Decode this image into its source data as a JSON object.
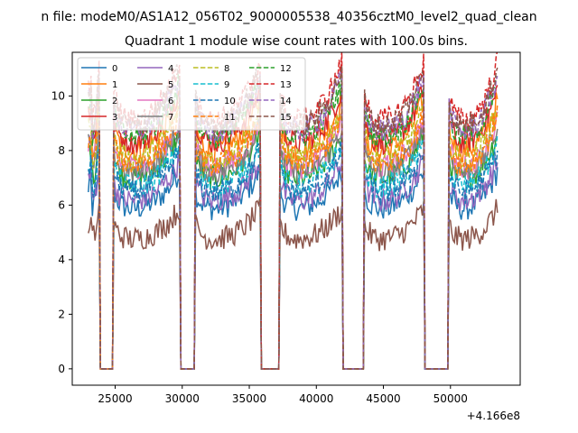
{
  "chart_data": {
    "type": "line",
    "suptitle": "n file: modeM0/AS1A12_056T02_9000005538_40356cztM0_level2_quad_clean",
    "title": "Quadrant 1 module wise count rates with 100.0s bins.",
    "xlabel": "",
    "ylabel": "",
    "x_offset_label": "+4.166e8",
    "xlim": [
      21800,
      55200
    ],
    "ylim": [
      -0.6,
      11.6
    ],
    "x_ticks": [
      25000,
      30000,
      35000,
      40000,
      45000,
      50000
    ],
    "x_tick_labels": [
      "25000",
      "30000",
      "35000",
      "40000",
      "45000",
      "50000"
    ],
    "y_ticks": [
      0,
      2,
      4,
      6,
      8,
      10
    ],
    "y_tick_labels": [
      "0",
      "2",
      "4",
      "6",
      "8",
      "10"
    ],
    "grid": false,
    "legend_position": "top-left",
    "orbit_segments": [
      [
        23000,
        23800
      ],
      [
        24900,
        29800
      ],
      [
        31000,
        35800
      ],
      [
        37300,
        41900
      ],
      [
        43600,
        48000
      ],
      [
        49900,
        53500
      ]
    ],
    "gaps": [
      [
        23800,
        24900
      ],
      [
        29800,
        31000
      ],
      [
        35800,
        37300
      ],
      [
        41900,
        43600
      ],
      [
        48000,
        49900
      ]
    ],
    "bin_seconds": 100.0,
    "series": [
      {
        "name": "0",
        "color": "#1f77b4",
        "dash": "solid",
        "base_rate": 5.8
      },
      {
        "name": "1",
        "color": "#ff7f0e",
        "dash": "solid",
        "base_rate": 7.9
      },
      {
        "name": "2",
        "color": "#2ca02c",
        "dash": "solid",
        "base_rate": 6.9
      },
      {
        "name": "3",
        "color": "#d62728",
        "dash": "solid",
        "base_rate": 8.2
      },
      {
        "name": "4",
        "color": "#9467bd",
        "dash": "solid",
        "base_rate": 6.1
      },
      {
        "name": "5",
        "color": "#8c564b",
        "dash": "solid",
        "base_rate": 4.7
      },
      {
        "name": "6",
        "color": "#e377c2",
        "dash": "solid",
        "base_rate": 7.3
      },
      {
        "name": "7",
        "color": "#7f7f7f",
        "dash": "solid",
        "base_rate": 7.1
      },
      {
        "name": "8",
        "color": "#bcbd22",
        "dash": "dashed",
        "base_rate": 7.6
      },
      {
        "name": "9",
        "color": "#17becf",
        "dash": "dashed",
        "base_rate": 6.6
      },
      {
        "name": "10",
        "color": "#1f77b4",
        "dash": "dashed",
        "base_rate": 6.4
      },
      {
        "name": "11",
        "color": "#ff7f0e",
        "dash": "dashed",
        "base_rate": 7.4
      },
      {
        "name": "12",
        "color": "#2ca02c",
        "dash": "dashed",
        "base_rate": 8.4
      },
      {
        "name": "13",
        "color": "#d62728",
        "dash": "dashed",
        "base_rate": 9.0
      },
      {
        "name": "14",
        "color": "#9467bd",
        "dash": "dashed",
        "base_rate": 8.6
      },
      {
        "name": "15",
        "color": "#8c564b",
        "dash": "dashed",
        "base_rate": 8.8
      }
    ]
  }
}
